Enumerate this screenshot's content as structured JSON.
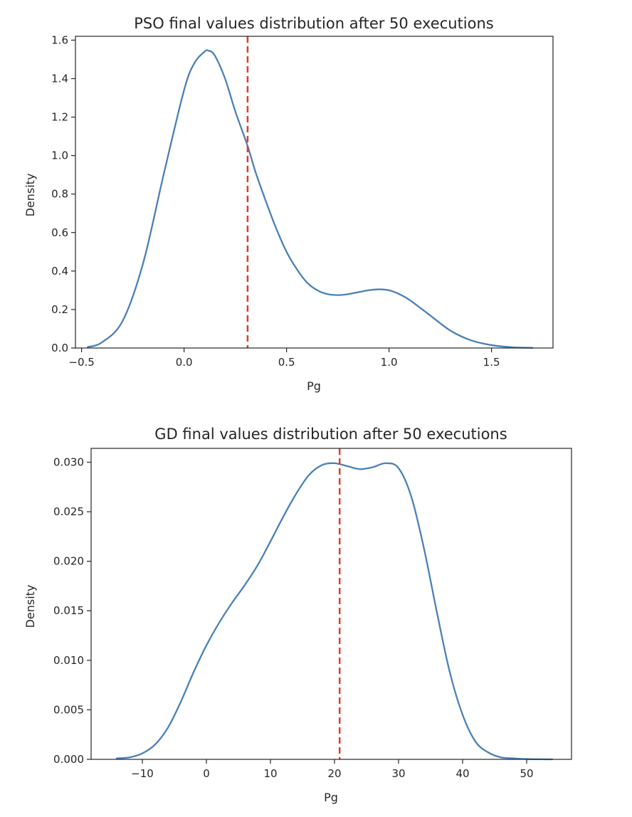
{
  "chart_data": [
    {
      "type": "line",
      "title": "PSO final values distribution after 50 executions",
      "xlabel": "Pg",
      "ylabel": "Density",
      "xlim": [
        -0.53,
        1.8
      ],
      "ylim": [
        0,
        1.62
      ],
      "xticks": [
        -0.5,
        0.0,
        0.5,
        1.0,
        1.5
      ],
      "xtick_labels": [
        "−0.5",
        "0.0",
        "0.5",
        "1.0",
        "1.5"
      ],
      "yticks": [
        0,
        0.2,
        0.4,
        0.6,
        0.8,
        1.0,
        1.2,
        1.4,
        1.6
      ],
      "ytick_labels": [
        "0.0",
        "0.2",
        "0.4",
        "0.6",
        "0.8",
        "1.0",
        "1.2",
        "1.4",
        "1.6"
      ],
      "grid": false,
      "series": [
        {
          "color": "#4a80b8",
          "x": [
            -0.47,
            -0.4,
            -0.3,
            -0.2,
            -0.1,
            0.0,
            0.05,
            0.1,
            0.12,
            0.15,
            0.2,
            0.25,
            0.31,
            0.35,
            0.4,
            0.45,
            0.5,
            0.55,
            0.6,
            0.65,
            0.7,
            0.75,
            0.8,
            0.85,
            0.9,
            0.95,
            1.0,
            1.05,
            1.1,
            1.2,
            1.3,
            1.4,
            1.5,
            1.6,
            1.7
          ],
          "y": [
            0.005,
            0.03,
            0.14,
            0.44,
            0.9,
            1.34,
            1.48,
            1.54,
            1.545,
            1.52,
            1.4,
            1.23,
            1.05,
            0.91,
            0.76,
            0.62,
            0.5,
            0.41,
            0.34,
            0.3,
            0.28,
            0.275,
            0.28,
            0.29,
            0.3,
            0.305,
            0.3,
            0.28,
            0.25,
            0.17,
            0.09,
            0.04,
            0.015,
            0.004,
            0.001
          ]
        }
      ],
      "reference_line": {
        "x": 0.31,
        "color": "#e33a2b",
        "style": "dashed"
      }
    },
    {
      "type": "line",
      "title": "GD final values distribution after 50 executions",
      "xlabel": "Pg",
      "ylabel": "Density",
      "xlim": [
        -18,
        57
      ],
      "ylim": [
        0,
        0.0314
      ],
      "xticks": [
        -10,
        0,
        10,
        20,
        30,
        40,
        50
      ],
      "xtick_labels": [
        "−10",
        "0",
        "10",
        "20",
        "30",
        "40",
        "50"
      ],
      "yticks": [
        0,
        0.005,
        0.01,
        0.015,
        0.02,
        0.025,
        0.03
      ],
      "ytick_labels": [
        "0.000",
        "0.005",
        "0.010",
        "0.015",
        "0.020",
        "0.025",
        "0.030"
      ],
      "grid": false,
      "series": [
        {
          "color": "#4a80b8",
          "x": [
            -14,
            -12,
            -10,
            -8,
            -6,
            -4,
            -2,
            0,
            2,
            4,
            6,
            8,
            10,
            12,
            14,
            16,
            18,
            20,
            22,
            24,
            26,
            28,
            30,
            32,
            34,
            36,
            38,
            40,
            42,
            44,
            46,
            48,
            50,
            52,
            54
          ],
          "y": [
            0.0001,
            0.0002,
            0.0006,
            0.0015,
            0.0032,
            0.0058,
            0.0088,
            0.0115,
            0.0138,
            0.0158,
            0.0176,
            0.0196,
            0.022,
            0.0245,
            0.0268,
            0.0287,
            0.0297,
            0.0299,
            0.0296,
            0.0293,
            0.0295,
            0.0299,
            0.0294,
            0.0265,
            0.0212,
            0.0148,
            0.0088,
            0.0045,
            0.0018,
            0.0007,
            0.0002,
            0.0001,
            3e-05,
            1e-05,
            0.0
          ]
        }
      ],
      "reference_line": {
        "x": 20.8,
        "color": "#e33a2b",
        "style": "dashed"
      }
    }
  ]
}
